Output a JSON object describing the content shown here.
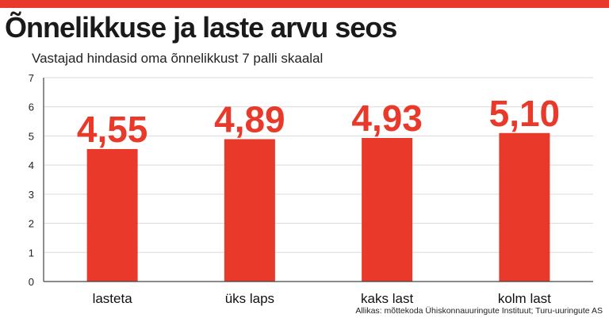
{
  "title": "Õnnelikkuse ja laste arvu seos",
  "subtitle": "Vastajad hindasid oma õnnelikkust 7 palli skaalal",
  "source": "Allikas: mõttekoda Ühiskonnauuringute Instituut; Turu-uuringute AS",
  "colors": {
    "accent": "#e8392a",
    "grid": "#d9d9d9",
    "axis": "#444444"
  },
  "chart_data": {
    "type": "bar",
    "categories": [
      "lasteta",
      "üks laps",
      "kaks last",
      "kolm last"
    ],
    "values": [
      4.55,
      4.89,
      4.93,
      5.1
    ],
    "value_labels": [
      "4,55",
      "4,89",
      "4,93",
      "5,10"
    ],
    "yticks": [
      "0",
      "1",
      "2",
      "3",
      "4",
      "5",
      "6",
      "7"
    ],
    "ylim": [
      0,
      7
    ],
    "grid": true,
    "title": "Õnnelikkuse ja laste arvu seos",
    "xlabel": "",
    "ylabel": ""
  }
}
